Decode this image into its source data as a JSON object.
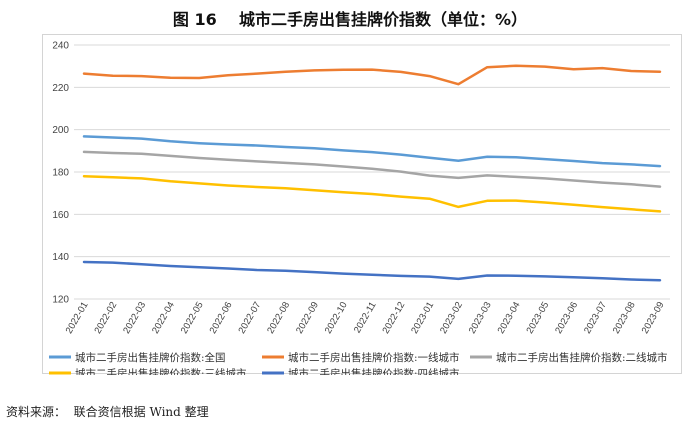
{
  "figure": {
    "title": "图 16    城市二手房出售挂牌价指数（单位：%）",
    "source": "资料来源：  联合资信根据 Wind 整理"
  },
  "chart_data": {
    "type": "line",
    "categories": [
      "2022-01",
      "2022-02",
      "2022-03",
      "2022-04",
      "2022-05",
      "2022-06",
      "2022-07",
      "2022-08",
      "2022-09",
      "2022-10",
      "2022-11",
      "2022-12",
      "2023-01",
      "2023-02",
      "2023-03",
      "2023-04",
      "2023-05",
      "2023-06",
      "2023-07",
      "2023-08",
      "2023-09"
    ],
    "ylim": [
      120,
      240
    ],
    "yticks": [
      120,
      140,
      160,
      180,
      200,
      220,
      240
    ],
    "grid": "horizontal",
    "legend_position": "bottom",
    "series": [
      {
        "name": "城市二手房出售挂牌价指数:全国",
        "color": "#5B9BD5",
        "values": [
          196.8,
          196.3,
          195.8,
          194.5,
          193.6,
          193.0,
          192.5,
          191.8,
          191.2,
          190.2,
          189.4,
          188.2,
          186.7,
          185.3,
          187.2,
          187.0,
          186.1,
          185.2,
          184.2,
          183.6,
          182.8
        ]
      },
      {
        "name": "城市二手房出售挂牌价指数:一线城市",
        "color": "#ED7D31",
        "values": [
          226.5,
          225.5,
          225.3,
          224.5,
          224.4,
          225.7,
          226.5,
          227.4,
          228.0,
          228.3,
          228.4,
          227.3,
          225.3,
          221.5,
          229.5,
          230.2,
          229.8,
          228.5,
          229.1,
          227.7,
          227.4
        ]
      },
      {
        "name": "城市二手房出售挂牌价指数:二线城市",
        "color": "#A5A5A5",
        "values": [
          189.5,
          189.0,
          188.6,
          187.6,
          186.6,
          185.8,
          185.0,
          184.3,
          183.6,
          182.6,
          181.5,
          180.2,
          178.3,
          177.2,
          178.4,
          177.7,
          177.0,
          176.0,
          175.0,
          174.2,
          173.1
        ]
      },
      {
        "name": "城市二手房出售挂牌价指数:三线城市",
        "color": "#FFC000",
        "values": [
          178.0,
          177.5,
          177.0,
          175.6,
          174.6,
          173.6,
          172.9,
          172.3,
          171.4,
          170.4,
          169.6,
          168.4,
          167.4,
          163.5,
          166.4,
          166.5,
          165.6,
          164.5,
          163.4,
          162.4,
          161.4
        ]
      },
      {
        "name": "城市二手房出售挂牌价指数:四线城市",
        "color": "#4472C4",
        "values": [
          137.5,
          137.2,
          136.4,
          135.6,
          135.0,
          134.4,
          133.7,
          133.3,
          132.7,
          132.0,
          131.5,
          130.9,
          130.6,
          129.5,
          131.1,
          131.0,
          130.7,
          130.3,
          129.8,
          129.2,
          128.9
        ]
      }
    ]
  }
}
